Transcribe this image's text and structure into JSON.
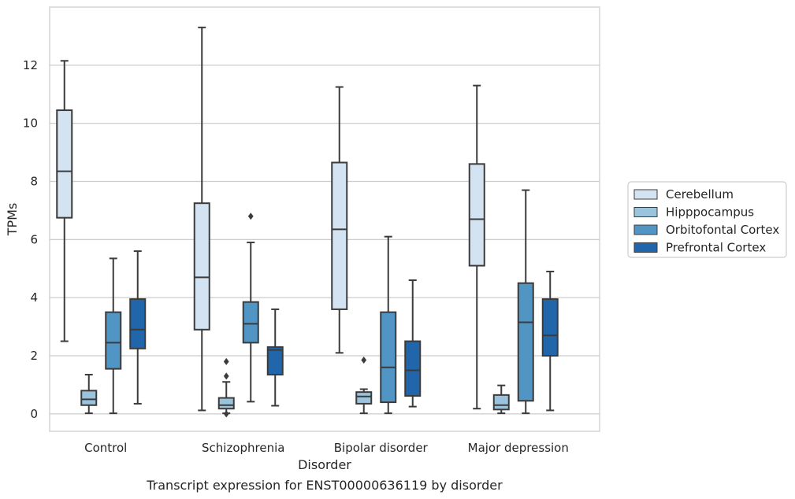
{
  "chart_data": {
    "type": "box",
    "caption": "Transcript expression for ENST00000636119 by disorder",
    "xlabel": "Disorder",
    "ylabel": "TPMs",
    "ylim": [
      -0.6,
      14.0
    ],
    "yticks": [
      0,
      2,
      4,
      6,
      8,
      10,
      12
    ],
    "grid": true,
    "legend_position": "right",
    "categories": [
      "Control",
      "Schizophrenia",
      "Bipolar disorder",
      "Major depression"
    ],
    "series": [
      {
        "name": "Cerebellum",
        "color": "#d4e3f2",
        "boxes": [
          {
            "whislo": 2.5,
            "q1": 6.75,
            "med": 8.35,
            "q3": 10.45,
            "whishi": 12.15,
            "fliers": []
          },
          {
            "whislo": 0.12,
            "q1": 2.9,
            "med": 4.7,
            "q3": 7.25,
            "whishi": 13.3,
            "fliers": []
          },
          {
            "whislo": 2.1,
            "q1": 3.6,
            "med": 6.35,
            "q3": 8.65,
            "whishi": 11.25,
            "fliers": []
          },
          {
            "whislo": 0.18,
            "q1": 5.1,
            "med": 6.7,
            "q3": 8.6,
            "whishi": 11.3,
            "fliers": []
          }
        ]
      },
      {
        "name": "Hipppocampus",
        "color": "#9ac4de",
        "boxes": [
          {
            "whislo": 0.02,
            "q1": 0.3,
            "med": 0.5,
            "q3": 0.8,
            "whishi": 1.35,
            "fliers": []
          },
          {
            "whislo": 0.02,
            "q1": 0.18,
            "med": 0.3,
            "q3": 0.55,
            "whishi": 1.1,
            "fliers": [
              1.3,
              1.8,
              0.0
            ]
          },
          {
            "whislo": 0.02,
            "q1": 0.35,
            "med": 0.6,
            "q3": 0.75,
            "whishi": 0.85,
            "fliers": [
              1.85
            ]
          },
          {
            "whislo": 0.02,
            "q1": 0.15,
            "med": 0.3,
            "q3": 0.65,
            "whishi": 0.98,
            "fliers": []
          }
        ]
      },
      {
        "name": "Orbitofontal Cortex",
        "color": "#5095c4",
        "boxes": [
          {
            "whislo": 0.02,
            "q1": 1.55,
            "med": 2.45,
            "q3": 3.5,
            "whishi": 5.35,
            "fliers": []
          },
          {
            "whislo": 0.42,
            "q1": 2.45,
            "med": 3.1,
            "q3": 3.85,
            "whishi": 5.9,
            "fliers": [
              6.8
            ]
          },
          {
            "whislo": 0.02,
            "q1": 0.4,
            "med": 1.6,
            "q3": 3.5,
            "whishi": 6.1,
            "fliers": []
          },
          {
            "whislo": 0.02,
            "q1": 0.45,
            "med": 3.15,
            "q3": 4.5,
            "whishi": 7.7,
            "fliers": []
          }
        ]
      },
      {
        "name": "Prefrontal Cortex",
        "color": "#2166ab",
        "boxes": [
          {
            "whislo": 0.35,
            "q1": 2.25,
            "med": 2.9,
            "q3": 3.95,
            "whishi": 5.6,
            "fliers": []
          },
          {
            "whislo": 0.28,
            "q1": 1.35,
            "med": 2.2,
            "q3": 2.3,
            "whishi": 3.6,
            "fliers": []
          },
          {
            "whislo": 0.25,
            "q1": 0.62,
            "med": 1.5,
            "q3": 2.5,
            "whishi": 4.6,
            "fliers": []
          },
          {
            "whislo": 0.12,
            "q1": 2.0,
            "med": 2.7,
            "q3": 3.95,
            "whishi": 4.9,
            "fliers": []
          }
        ]
      }
    ]
  }
}
